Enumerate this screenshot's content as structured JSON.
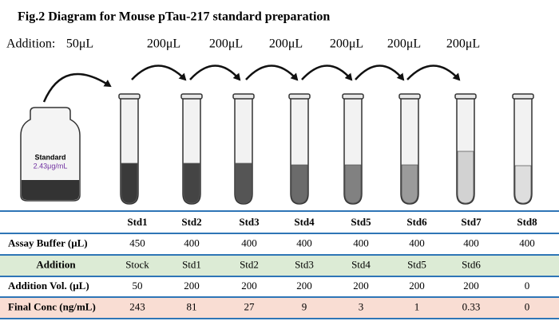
{
  "header": {
    "title": "Fig.2 Diagram for Mouse pTau-217 standard preparation"
  },
  "diagram": {
    "addition_label": "Addition:",
    "volumes": [
      "50μL",
      "200μL",
      "200μL",
      "200μL",
      "200μL",
      "200μL",
      "200μL"
    ]
  },
  "bottle": {
    "label": "Standard",
    "concentration": "2.43μg/mL"
  },
  "table": {
    "columns": [
      "Std1",
      "Std2",
      "Std3",
      "Std4",
      "Std5",
      "Std6",
      "Std7",
      "Std8"
    ],
    "rows": [
      {
        "label": "Assay Buffer (μL)",
        "cells": [
          "450",
          "400",
          "400",
          "400",
          "400",
          "400",
          "400",
          "400"
        ]
      },
      {
        "label": "Addition",
        "cells": [
          "Stock",
          "Std1",
          "Std2",
          "Std3",
          "Std4",
          "Std5",
          "Std6"
        ]
      },
      {
        "label": "Addition Vol. (μL)",
        "cells": [
          "50",
          "200",
          "200",
          "200",
          "200",
          "200",
          "200",
          "0"
        ]
      },
      {
        "label": "Final Conc (ng/mL)",
        "cells": [
          "243",
          "81",
          "27",
          "9",
          "3",
          "1",
          "0.33",
          "0"
        ]
      }
    ]
  }
}
